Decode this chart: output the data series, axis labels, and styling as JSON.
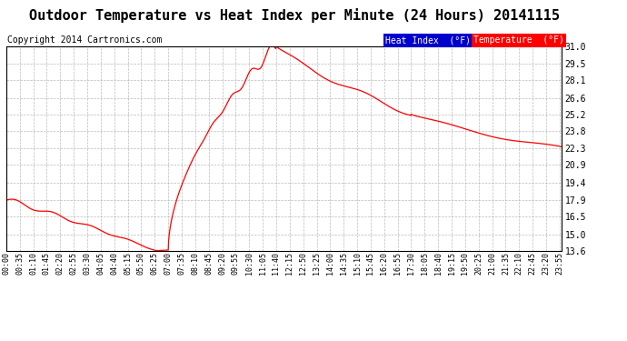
{
  "title": "Outdoor Temperature vs Heat Index per Minute (24 Hours) 20141115",
  "copyright": "Copyright 2014 Cartronics.com",
  "y_ticks": [
    13.6,
    15.0,
    16.5,
    17.9,
    19.4,
    20.9,
    22.3,
    23.8,
    25.2,
    26.6,
    28.1,
    29.5,
    31.0
  ],
  "x_tick_labels": [
    "00:00",
    "00:35",
    "01:10",
    "01:45",
    "02:20",
    "02:55",
    "03:30",
    "04:05",
    "04:40",
    "05:15",
    "05:50",
    "06:25",
    "07:00",
    "07:35",
    "08:10",
    "08:45",
    "09:20",
    "09:55",
    "10:30",
    "11:05",
    "11:40",
    "12:15",
    "12:50",
    "13:25",
    "14:00",
    "14:35",
    "15:10",
    "15:45",
    "16:20",
    "16:55",
    "17:30",
    "18:05",
    "18:40",
    "19:15",
    "19:50",
    "20:25",
    "21:00",
    "21:35",
    "22:10",
    "22:45",
    "23:20",
    "23:55"
  ],
  "line_color": "#FF0000",
  "background_color": "#FFFFFF",
  "grid_color": "#AAAAAA",
  "title_fontsize": 11,
  "copyright_fontsize": 7,
  "legend_heat_index_bg": "#0000CC",
  "legend_temp_bg": "#FF0000",
  "legend_text_color": "#FFFFFF",
  "ylim": [
    13.6,
    31.0
  ]
}
